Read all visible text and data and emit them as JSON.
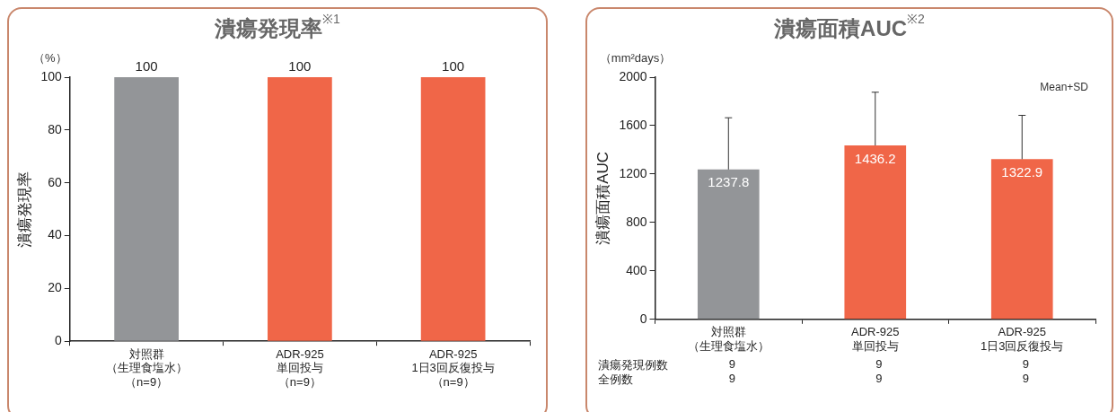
{
  "chart_data": [
    {
      "type": "bar",
      "title": "潰瘍発現率$^{※1}$",
      "ylabel": "潰瘍発現率",
      "categories": [
        "対照群（生理食塩水）（n=9）",
        "ADR-925単回投与（n=9）",
        "ADR-925 1日3回反復投与（n=9）"
      ],
      "values": [
        100,
        100,
        100
      ],
      "colors": [
        "#939598",
        "#f06648",
        "#f06648"
      ],
      "ylim": [
        0,
        100
      ],
      "yticks": [
        0,
        20,
        40,
        60,
        80,
        100
      ],
      "data_labels": true,
      "legend": false,
      "annotations": [
        "（%）"
      ]
    },
    {
      "type": "bar",
      "title": "潰瘍面積AUC$^{※2}$",
      "ylabel": "潰瘍面積AUC",
      "categories": [
        "対照群（生理食塩水）",
        "ADR-925単回投与",
        "ADR-925 1日3回反復投与"
      ],
      "values": [
        1237.8,
        1436.2,
        1322.9
      ],
      "colors": [
        "#939598",
        "#f06648",
        "#f06648"
      ],
      "errors": [
        [
          1237.8,
          1665
        ],
        [
          1436.2,
          1876
        ],
        [
          1322.9,
          1685
        ]
      ],
      "ylim": [
        0,
        2000
      ],
      "yticks": [
        0,
        400,
        800,
        1200,
        1600,
        2000
      ],
      "data_labels": true,
      "legend": false,
      "annotations": [
        "（mm²days）",
        "Mean+SD",
        "潰瘍発現例数",
        "9",
        "9",
        "9",
        "全例数",
        "9",
        "9",
        "9"
      ]
    }
  ]
}
